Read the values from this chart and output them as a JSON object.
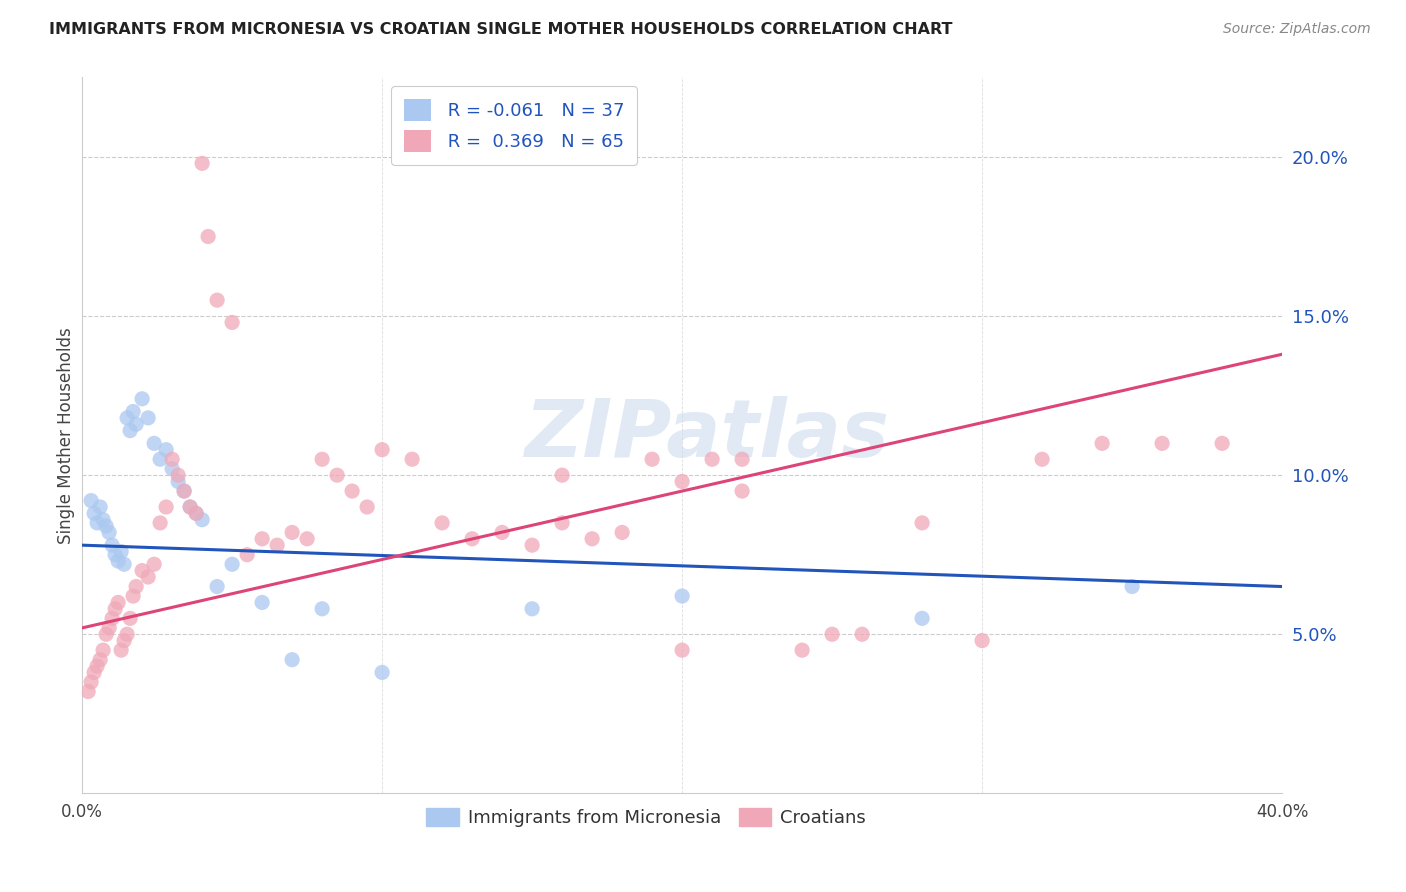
{
  "title": "IMMIGRANTS FROM MICRONESIA VS CROATIAN SINGLE MOTHER HOUSEHOLDS CORRELATION CHART",
  "source": "Source: ZipAtlas.com",
  "ylabel": "Single Mother Households",
  "legend_blue_label": "Immigrants from Micronesia",
  "legend_pink_label": "Croatians",
  "legend_blue_R": "R = -0.061",
  "legend_blue_N": "N = 37",
  "legend_pink_R": "R =  0.369",
  "legend_pink_N": "N = 65",
  "blue_color": "#aac8f0",
  "pink_color": "#f0a8b8",
  "blue_line_color": "#2255bb",
  "pink_line_color": "#dd4477",
  "watermark": "ZIPatlas",
  "blue_dots": [
    [
      0.3,
      9.2
    ],
    [
      0.4,
      8.8
    ],
    [
      0.5,
      8.5
    ],
    [
      0.6,
      9.0
    ],
    [
      0.7,
      8.6
    ],
    [
      0.8,
      8.4
    ],
    [
      0.9,
      8.2
    ],
    [
      1.0,
      7.8
    ],
    [
      1.1,
      7.5
    ],
    [
      1.2,
      7.3
    ],
    [
      1.3,
      7.6
    ],
    [
      1.4,
      7.2
    ],
    [
      1.5,
      11.8
    ],
    [
      1.6,
      11.4
    ],
    [
      1.7,
      12.0
    ],
    [
      1.8,
      11.6
    ],
    [
      2.0,
      12.4
    ],
    [
      2.2,
      11.8
    ],
    [
      2.4,
      11.0
    ],
    [
      2.6,
      10.5
    ],
    [
      2.8,
      10.8
    ],
    [
      3.0,
      10.2
    ],
    [
      3.2,
      9.8
    ],
    [
      3.4,
      9.5
    ],
    [
      3.6,
      9.0
    ],
    [
      3.8,
      8.8
    ],
    [
      4.0,
      8.6
    ],
    [
      4.5,
      6.5
    ],
    [
      5.0,
      7.2
    ],
    [
      6.0,
      6.0
    ],
    [
      7.0,
      4.2
    ],
    [
      8.0,
      5.8
    ],
    [
      10.0,
      3.8
    ],
    [
      15.0,
      5.8
    ],
    [
      20.0,
      6.2
    ],
    [
      28.0,
      5.5
    ],
    [
      35.0,
      6.5
    ]
  ],
  "pink_dots": [
    [
      0.2,
      3.2
    ],
    [
      0.3,
      3.5
    ],
    [
      0.4,
      3.8
    ],
    [
      0.5,
      4.0
    ],
    [
      0.6,
      4.2
    ],
    [
      0.7,
      4.5
    ],
    [
      0.8,
      5.0
    ],
    [
      0.9,
      5.2
    ],
    [
      1.0,
      5.5
    ],
    [
      1.1,
      5.8
    ],
    [
      1.2,
      6.0
    ],
    [
      1.3,
      4.5
    ],
    [
      1.4,
      4.8
    ],
    [
      1.5,
      5.0
    ],
    [
      1.6,
      5.5
    ],
    [
      1.7,
      6.2
    ],
    [
      1.8,
      6.5
    ],
    [
      2.0,
      7.0
    ],
    [
      2.2,
      6.8
    ],
    [
      2.4,
      7.2
    ],
    [
      2.6,
      8.5
    ],
    [
      2.8,
      9.0
    ],
    [
      3.0,
      10.5
    ],
    [
      3.2,
      10.0
    ],
    [
      3.4,
      9.5
    ],
    [
      3.6,
      9.0
    ],
    [
      3.8,
      8.8
    ],
    [
      4.0,
      19.8
    ],
    [
      4.2,
      17.5
    ],
    [
      4.5,
      15.5
    ],
    [
      5.0,
      14.8
    ],
    [
      5.5,
      7.5
    ],
    [
      6.0,
      8.0
    ],
    [
      6.5,
      7.8
    ],
    [
      7.0,
      8.2
    ],
    [
      7.5,
      8.0
    ],
    [
      8.0,
      10.5
    ],
    [
      8.5,
      10.0
    ],
    [
      9.0,
      9.5
    ],
    [
      9.5,
      9.0
    ],
    [
      10.0,
      10.8
    ],
    [
      11.0,
      10.5
    ],
    [
      12.0,
      8.5
    ],
    [
      13.0,
      8.0
    ],
    [
      14.0,
      8.2
    ],
    [
      15.0,
      7.8
    ],
    [
      16.0,
      8.5
    ],
    [
      17.0,
      8.0
    ],
    [
      18.0,
      8.2
    ],
    [
      19.0,
      10.5
    ],
    [
      20.0,
      9.8
    ],
    [
      21.0,
      10.5
    ],
    [
      22.0,
      9.5
    ],
    [
      24.0,
      4.5
    ],
    [
      26.0,
      5.0
    ],
    [
      28.0,
      8.5
    ],
    [
      30.0,
      4.8
    ],
    [
      32.0,
      10.5
    ],
    [
      34.0,
      11.0
    ],
    [
      36.0,
      11.0
    ],
    [
      38.0,
      11.0
    ],
    [
      22.0,
      10.5
    ],
    [
      16.0,
      10.0
    ],
    [
      20.0,
      4.5
    ],
    [
      25.0,
      5.0
    ]
  ],
  "blue_line": {
    "x0": 0.0,
    "y0": 7.8,
    "x1": 40.0,
    "y1": 6.5
  },
  "pink_line": {
    "x0": 0.0,
    "y0": 5.2,
    "x1": 40.0,
    "y1": 13.8
  },
  "xlim": [
    0.0,
    40.0
  ],
  "ylim": [
    0.0,
    22.5
  ],
  "ytick_vals": [
    5.0,
    10.0,
    15.0,
    20.0
  ],
  "ytick_labels": [
    "5.0%",
    "10.0%",
    "15.0%",
    "20.0%"
  ],
  "xtick_vals": [
    0.0,
    10.0,
    20.0,
    30.0,
    40.0
  ],
  "xtick_labels": [
    "0.0%",
    "",
    "",
    "",
    "40.0%"
  ]
}
